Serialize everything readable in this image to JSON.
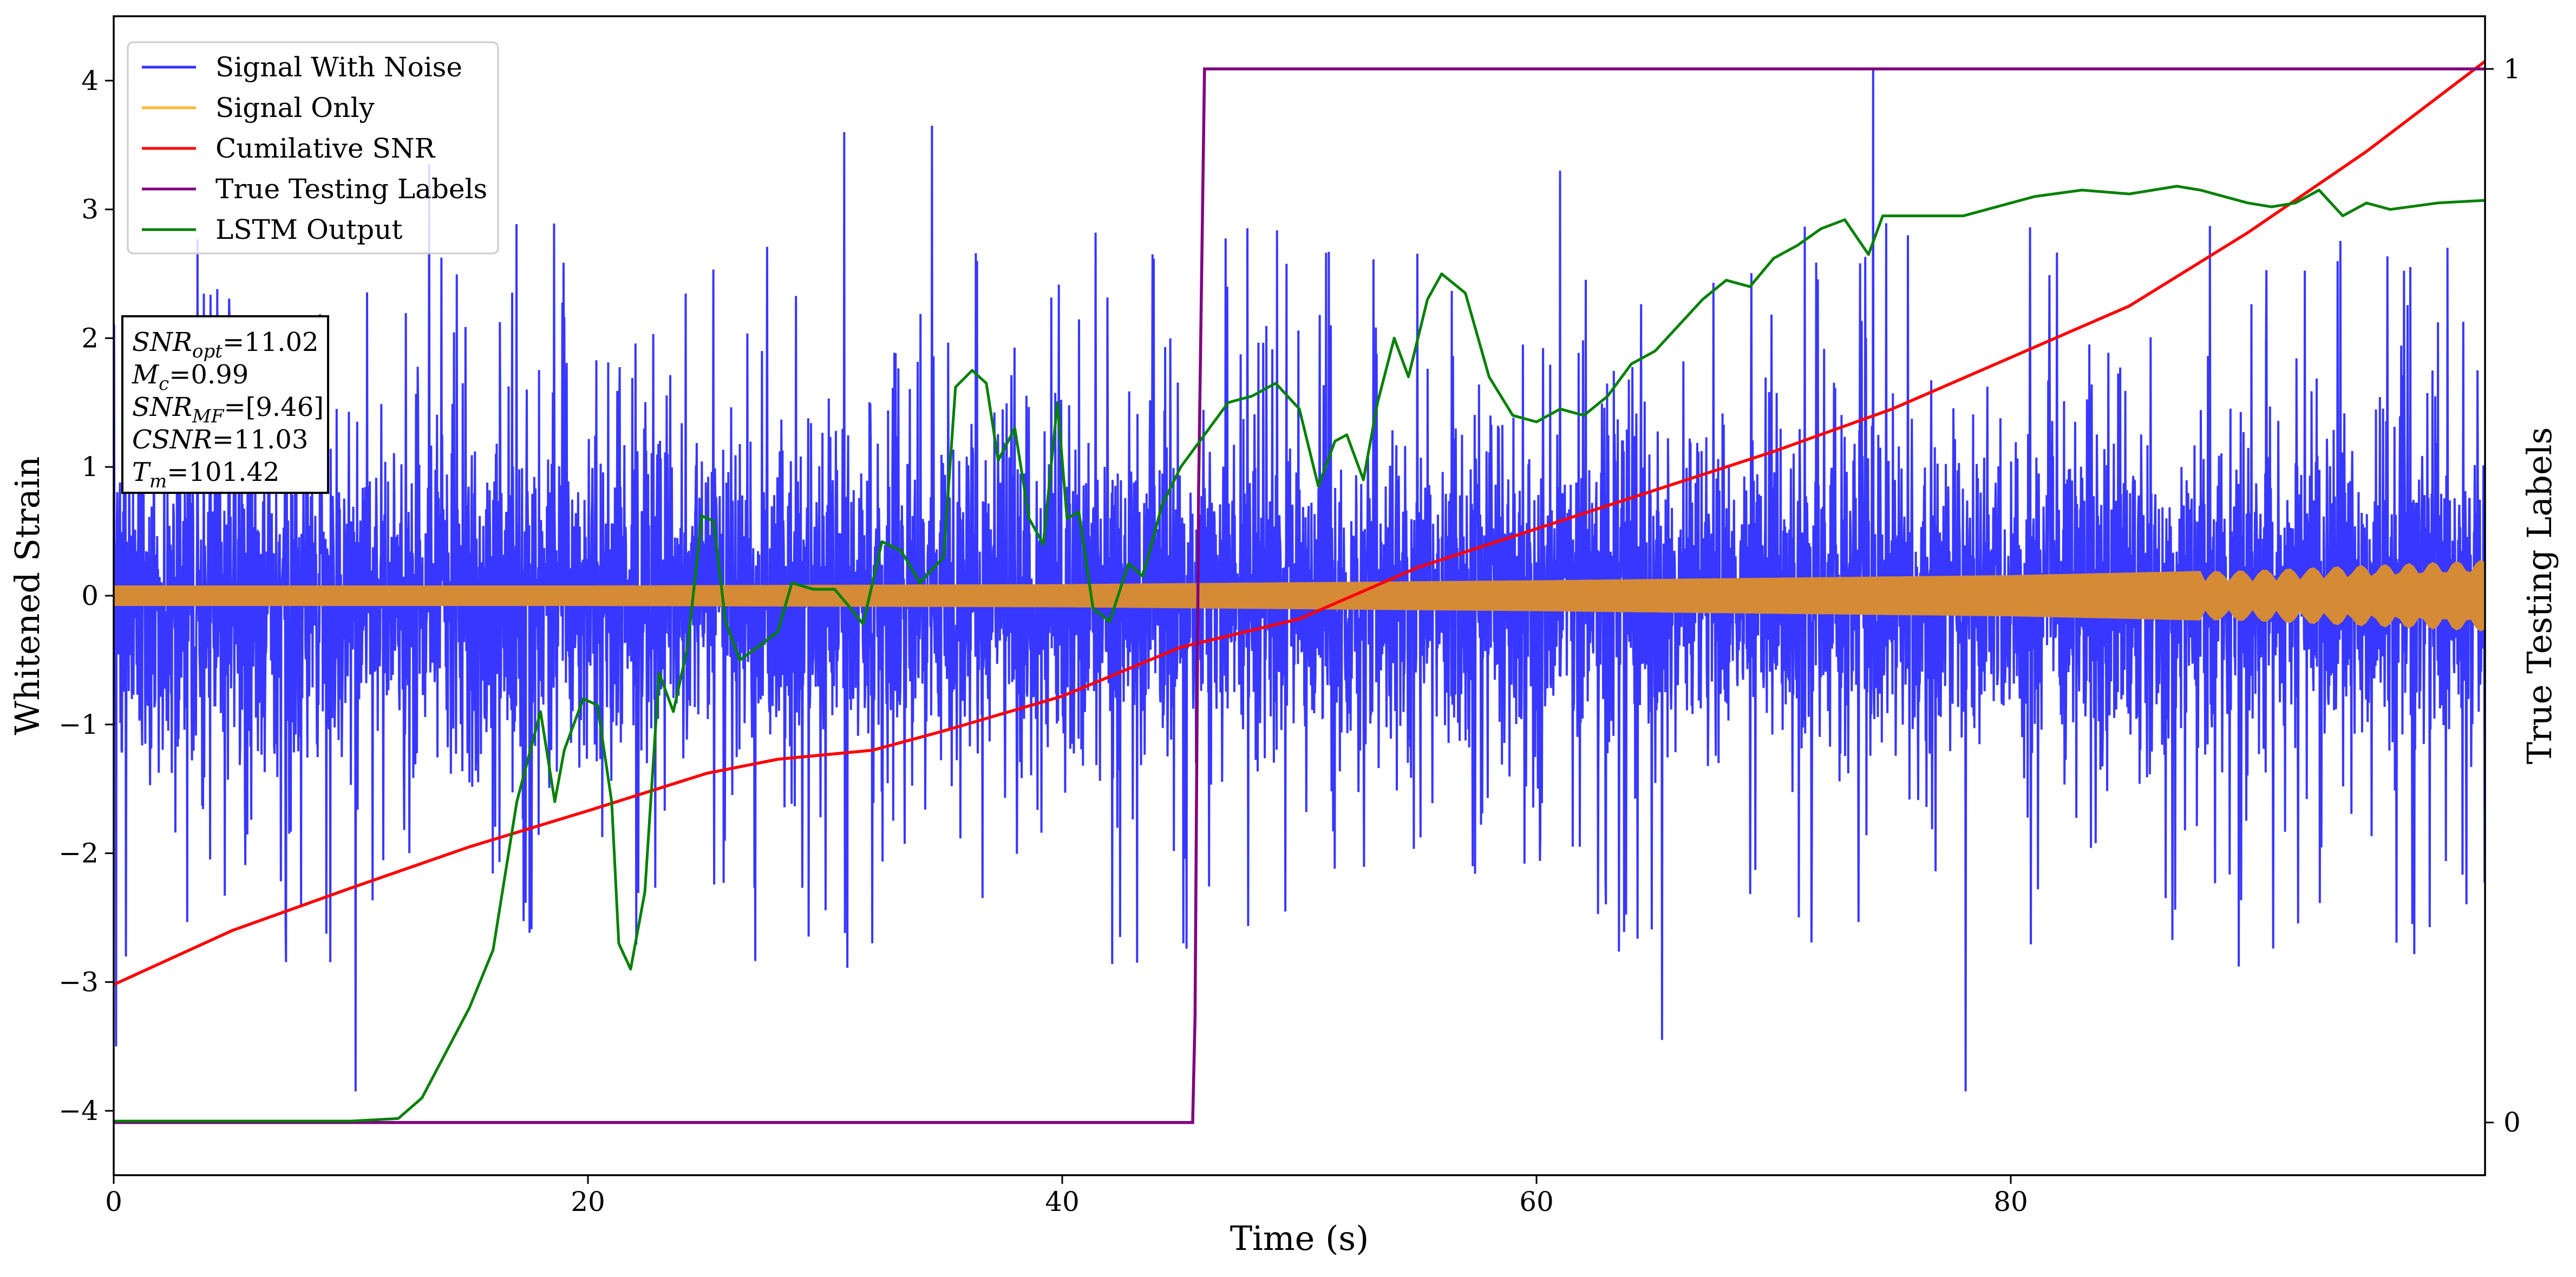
{
  "chart_data": {
    "type": "line",
    "xlabel": "Time (s)",
    "ylabel": "Whitened Strain",
    "y2label": "True Testing Labels",
    "xlim": [
      0,
      100
    ],
    "ylim": [
      -4.5,
      4.5
    ],
    "y2lim": [
      -0.05,
      1.05
    ],
    "xticks": [
      "0",
      "20",
      "40",
      "60",
      "80"
    ],
    "yticks": [
      "−4",
      "−3",
      "−2",
      "−1",
      "0",
      "1",
      "2",
      "3",
      "4"
    ],
    "y2ticks": [
      "0",
      "1"
    ],
    "grid": false,
    "legend_position": "upper-left",
    "legend": [
      "Signal With Noise",
      "Signal Only",
      "Cumilative SNR",
      "True Testing Labels",
      "LSTM Output"
    ],
    "colors": {
      "Signal With Noise": "#3333ff",
      "Signal Only": "#ffb733",
      "Signal Only (overlay)": "#d58a35",
      "Cumilative SNR": "#ff0000",
      "True Testing Labels": "#800080",
      "LSTM Output": "#008000"
    },
    "annotation": {
      "lines": [
        {
          "base": "SNR",
          "sub": "opt",
          "value": "=11.02"
        },
        {
          "base": "M",
          "sub": "c",
          "value": "=0.99"
        },
        {
          "base": "SNR",
          "sub": "MF",
          "value": "=[9.46]"
        },
        {
          "base": "CSNR",
          "sub": "",
          "value": "=11.03"
        },
        {
          "base": "T",
          "sub": "m",
          "value": "=101.42"
        }
      ]
    },
    "series": [
      {
        "name": "Signal With Noise",
        "description_axis": "left",
        "envelope_typical": 1.4,
        "spike_extremes": [
          {
            "x": 74.2,
            "y": 4.1
          },
          {
            "x": 10.2,
            "y": -3.85
          },
          {
            "x": 78.1,
            "y": -3.85
          },
          {
            "x": 0.1,
            "y": -3.5
          },
          {
            "x": 65.3,
            "y": -3.45
          },
          {
            "x": 13.3,
            "y": 3.35
          },
          {
            "x": 34.5,
            "y": 3.65
          },
          {
            "x": 30.8,
            "y": 3.6
          },
          {
            "x": 61.0,
            "y": 3.3
          }
        ]
      },
      {
        "name": "Signal Only",
        "description_axis": "left",
        "amplitude_points": [
          {
            "x": 0,
            "a": 0.08
          },
          {
            "x": 20,
            "a": 0.08
          },
          {
            "x": 40,
            "a": 0.09
          },
          {
            "x": 60,
            "a": 0.12
          },
          {
            "x": 80,
            "a": 0.16
          },
          {
            "x": 90,
            "a": 0.2
          },
          {
            "x": 100,
            "a": 0.28
          }
        ]
      },
      {
        "name": "Cumilative SNR",
        "axis": "left",
        "points": [
          [
            0,
            -3.02
          ],
          [
            5,
            -2.6
          ],
          [
            10,
            -2.27
          ],
          [
            15,
            -1.95
          ],
          [
            20,
            -1.67
          ],
          [
            25,
            -1.38
          ],
          [
            28,
            -1.27
          ],
          [
            32,
            -1.2
          ],
          [
            35,
            -1.05
          ],
          [
            40,
            -0.78
          ],
          [
            45,
            -0.4
          ],
          [
            50,
            -0.18
          ],
          [
            55,
            0.22
          ],
          [
            60,
            0.52
          ],
          [
            65,
            0.82
          ],
          [
            70,
            1.12
          ],
          [
            75,
            1.45
          ],
          [
            80,
            1.85
          ],
          [
            85,
            2.25
          ],
          [
            90,
            2.82
          ],
          [
            95,
            3.45
          ],
          [
            100,
            4.15
          ]
        ]
      },
      {
        "name": "True Testing Labels",
        "axis": "right",
        "points": [
          [
            0,
            0
          ],
          [
            45.5,
            0
          ],
          [
            45.6,
            0.1
          ],
          [
            45.75,
            0.6
          ],
          [
            46.0,
            1
          ],
          [
            100,
            1
          ]
        ]
      },
      {
        "name": "LSTM Output",
        "axis": "left",
        "points": [
          [
            0,
            -4.08
          ],
          [
            5,
            -4.08
          ],
          [
            10,
            -4.08
          ],
          [
            12,
            -4.06
          ],
          [
            13,
            -3.9
          ],
          [
            14,
            -3.55
          ],
          [
            15,
            -3.2
          ],
          [
            16,
            -2.75
          ],
          [
            17,
            -1.6
          ],
          [
            18,
            -0.9
          ],
          [
            18.6,
            -1.6
          ],
          [
            19,
            -1.2
          ],
          [
            19.8,
            -0.8
          ],
          [
            20.4,
            -0.85
          ],
          [
            21,
            -1.6
          ],
          [
            21.3,
            -2.7
          ],
          [
            21.8,
            -2.9
          ],
          [
            22.4,
            -2.3
          ],
          [
            23,
            -0.6
          ],
          [
            23.6,
            -0.9
          ],
          [
            24.2,
            -0.4
          ],
          [
            24.8,
            0.62
          ],
          [
            25.3,
            0.58
          ],
          [
            25.8,
            -0.2
          ],
          [
            26.4,
            -0.5
          ],
          [
            27,
            -0.42
          ],
          [
            28,
            -0.28
          ],
          [
            28.6,
            0.1
          ],
          [
            29.5,
            0.05
          ],
          [
            30.4,
            0.05
          ],
          [
            31,
            -0.08
          ],
          [
            31.6,
            -0.22
          ],
          [
            32.4,
            0.42
          ],
          [
            33.2,
            0.35
          ],
          [
            34,
            0.1
          ],
          [
            35,
            0.3
          ],
          [
            35.5,
            1.62
          ],
          [
            36.2,
            1.75
          ],
          [
            36.8,
            1.65
          ],
          [
            37.3,
            1.05
          ],
          [
            38,
            1.3
          ],
          [
            38.6,
            0.6
          ],
          [
            39.2,
            0.4
          ],
          [
            39.8,
            1.5
          ],
          [
            40.2,
            0.6
          ],
          [
            40.7,
            0.65
          ],
          [
            41.3,
            -0.1
          ],
          [
            42,
            -0.2
          ],
          [
            42.8,
            0.25
          ],
          [
            43.4,
            0.15
          ],
          [
            44.2,
            0.7
          ],
          [
            45,
            1.0
          ],
          [
            46,
            1.25
          ],
          [
            47,
            1.5
          ],
          [
            48,
            1.55
          ],
          [
            49,
            1.65
          ],
          [
            50,
            1.45
          ],
          [
            50.8,
            0.85
          ],
          [
            51.5,
            1.2
          ],
          [
            52,
            1.25
          ],
          [
            52.7,
            0.9
          ],
          [
            53.3,
            1.5
          ],
          [
            54,
            2.0
          ],
          [
            54.6,
            1.7
          ],
          [
            55.4,
            2.3
          ],
          [
            56,
            2.5
          ],
          [
            57,
            2.35
          ],
          [
            58,
            1.7
          ],
          [
            59,
            1.4
          ],
          [
            60,
            1.35
          ],
          [
            61,
            1.45
          ],
          [
            62,
            1.4
          ],
          [
            63,
            1.55
          ],
          [
            64,
            1.8
          ],
          [
            65,
            1.9
          ],
          [
            66,
            2.1
          ],
          [
            67,
            2.3
          ],
          [
            68,
            2.45
          ],
          [
            69,
            2.4
          ],
          [
            70,
            2.62
          ],
          [
            71,
            2.72
          ],
          [
            72,
            2.85
          ],
          [
            73,
            2.92
          ],
          [
            74,
            2.65
          ],
          [
            74.6,
            2.95
          ],
          [
            76,
            2.95
          ],
          [
            78,
            2.95
          ],
          [
            79,
            3.0
          ],
          [
            80,
            3.05
          ],
          [
            81,
            3.1
          ],
          [
            83,
            3.15
          ],
          [
            85,
            3.12
          ],
          [
            87,
            3.18
          ],
          [
            88,
            3.15
          ],
          [
            90,
            3.05
          ],
          [
            91,
            3.02
          ],
          [
            92,
            3.05
          ],
          [
            93,
            3.15
          ],
          [
            94,
            2.95
          ],
          [
            95,
            3.05
          ],
          [
            96,
            3.0
          ],
          [
            98,
            3.05
          ],
          [
            100,
            3.07
          ]
        ]
      }
    ]
  }
}
